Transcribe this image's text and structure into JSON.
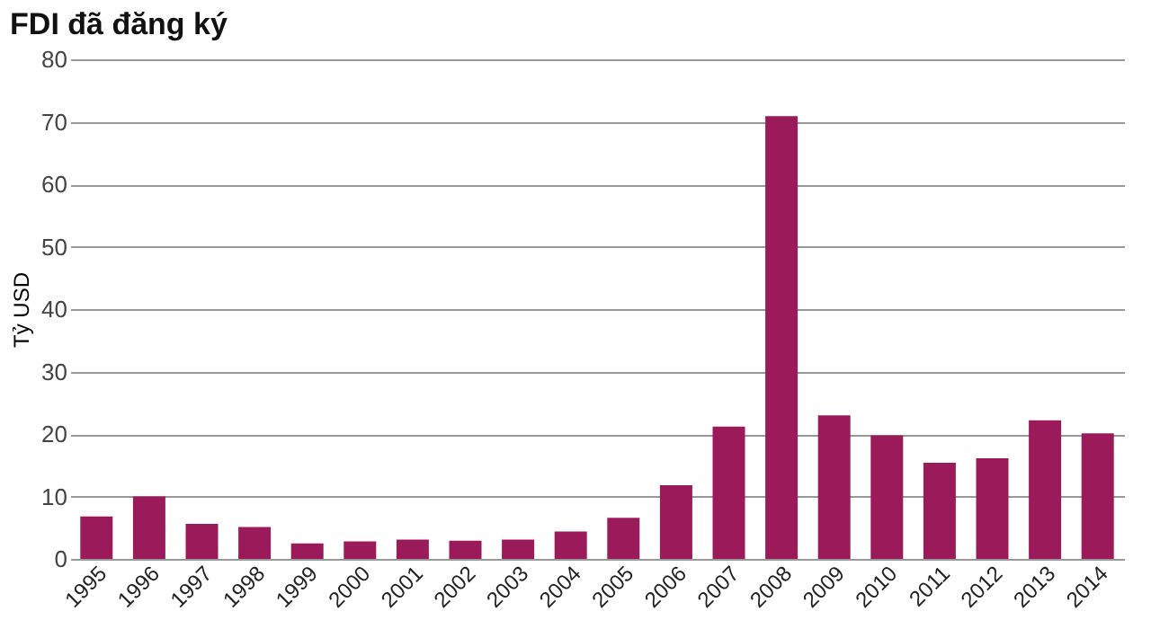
{
  "chart_data": {
    "type": "bar",
    "title": "FDI đã đăng ký",
    "ylabel": "Tỷ USD",
    "categories": [
      "1995",
      "1996",
      "1997",
      "1998",
      "1999",
      "2000",
      "2001",
      "2002",
      "2003",
      "2004",
      "2005",
      "2006",
      "2007",
      "2008",
      "2009",
      "2010",
      "2011",
      "2012",
      "2013",
      "2014"
    ],
    "values": [
      6.8,
      10,
      5.6,
      5.1,
      2.5,
      2.8,
      3.1,
      2.9,
      3.1,
      4.4,
      6.6,
      11.8,
      21.2,
      70.9,
      23.0,
      19.8,
      15.4,
      16.1,
      22.2,
      20.1
    ],
    "color": "#9b1b5a",
    "ylim": [
      0,
      80
    ],
    "yticks": [
      0,
      10,
      20,
      30,
      40,
      50,
      60,
      70,
      80
    ],
    "grid": "y"
  }
}
